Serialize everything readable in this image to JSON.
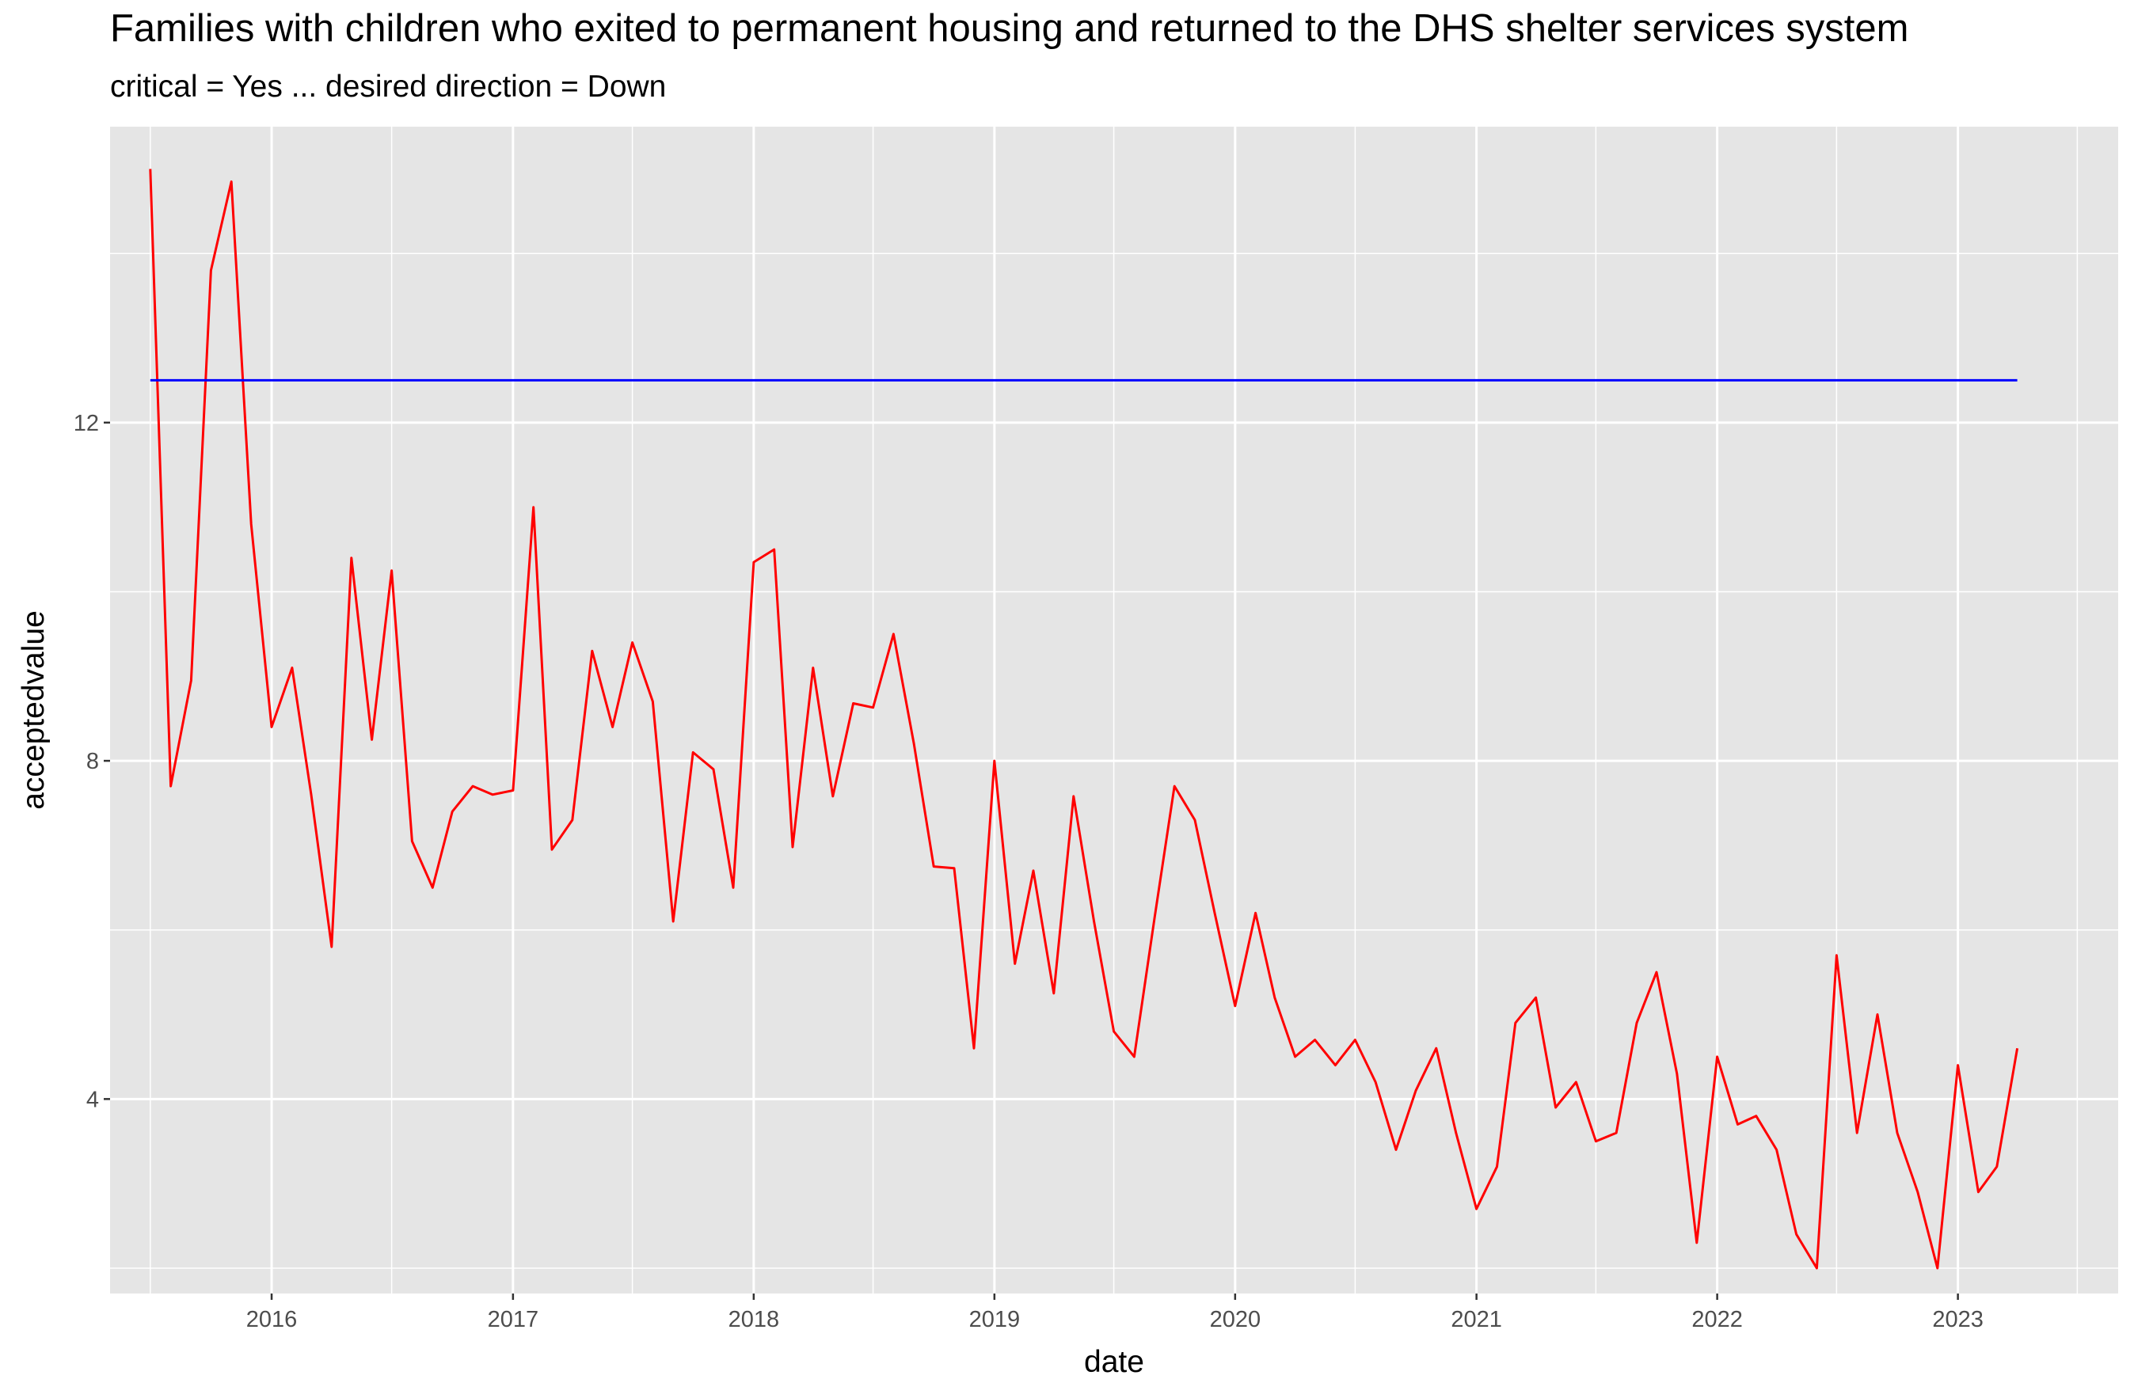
{
  "chart_data": {
    "type": "line",
    "title": "Families with children who exited to permanent housing and returned to the DHS shelter services system",
    "subtitle": "critical = Yes ... desired direction = Down",
    "xlabel": "date",
    "ylabel": "acceptedvalue",
    "xlim": [
      "2015-05-01",
      "2023-09-01"
    ],
    "ylim": [
      1.7,
      15.5
    ],
    "x_tick_labels": [
      "2016",
      "2017",
      "2018",
      "2019",
      "2020",
      "2021",
      "2022",
      "2023"
    ],
    "y_tick_labels": [
      4,
      8,
      12
    ],
    "grid": true,
    "colors": {
      "panel": "#E5E5E5",
      "grid": "#FFFFFF",
      "actual": "#FF0000",
      "target": "#0000FF"
    },
    "series": [
      {
        "color": "#FF0000",
        "x": [
          "2015-07-01",
          "2015-08-01",
          "2015-09-01",
          "2015-10-01",
          "2015-11-01",
          "2015-12-01",
          "2016-01-01",
          "2016-02-01",
          "2016-03-01",
          "2016-04-01",
          "2016-05-01",
          "2016-06-01",
          "2016-07-01",
          "2016-08-01",
          "2016-09-01",
          "2016-10-01",
          "2016-11-01",
          "2016-12-01",
          "2017-01-01",
          "2017-02-01",
          "2017-03-01",
          "2017-04-01",
          "2017-05-01",
          "2017-06-01",
          "2017-07-01",
          "2017-08-01",
          "2017-09-01",
          "2017-10-01",
          "2017-11-01",
          "2017-12-01",
          "2018-01-01",
          "2018-02-01",
          "2018-03-01",
          "2018-04-01",
          "2018-05-01",
          "2018-06-01",
          "2018-07-01",
          "2018-08-01",
          "2018-09-01",
          "2018-10-01",
          "2018-11-01",
          "2018-12-01",
          "2019-01-01",
          "2019-02-01",
          "2019-03-01",
          "2019-04-01",
          "2019-05-01",
          "2019-06-01",
          "2019-07-01",
          "2019-08-01",
          "2019-09-01",
          "2019-10-01",
          "2019-11-01",
          "2019-12-01",
          "2020-01-01",
          "2020-02-01",
          "2020-03-01",
          "2020-04-01",
          "2020-05-01",
          "2020-06-01",
          "2020-07-01",
          "2020-08-01",
          "2020-09-01",
          "2020-10-01",
          "2020-11-01",
          "2020-12-01",
          "2021-01-01",
          "2021-02-01",
          "2021-03-01",
          "2021-04-01",
          "2021-05-01",
          "2021-06-01",
          "2021-07-01",
          "2021-08-01",
          "2021-09-01",
          "2021-10-01",
          "2021-11-01",
          "2021-12-01",
          "2022-01-01",
          "2022-02-01",
          "2022-03-01",
          "2022-04-01",
          "2022-05-01",
          "2022-06-01",
          "2022-07-01",
          "2022-08-01",
          "2022-09-01",
          "2022-10-01",
          "2022-11-01",
          "2022-12-01",
          "2023-01-01",
          "2023-02-01",
          "2023-03-01",
          "2023-04-01"
        ],
        "values": [
          15.0,
          7.7,
          8.95,
          13.8,
          14.85,
          10.8,
          8.4,
          9.1,
          7.6,
          5.8,
          10.4,
          8.25,
          10.25,
          7.05,
          6.5,
          7.4,
          7.7,
          7.6,
          7.65,
          11.0,
          6.95,
          7.3,
          9.3,
          8.4,
          9.4,
          8.7,
          6.1,
          8.1,
          7.9,
          6.5,
          10.35,
          10.5,
          6.98,
          9.1,
          7.58,
          8.68,
          8.63,
          9.5,
          8.2,
          6.75,
          6.73,
          4.6,
          8.0,
          5.6,
          6.7,
          5.25,
          7.58,
          6.1,
          4.8,
          4.5,
          6.15,
          7.7,
          7.3,
          6.2,
          5.1,
          6.2,
          5.2,
          4.5,
          4.7,
          4.4,
          4.7,
          4.2,
          3.4,
          4.1,
          4.6,
          3.6,
          2.7,
          3.2,
          4.9,
          5.2,
          3.9,
          4.2,
          3.5,
          3.6,
          4.9,
          5.5,
          4.3,
          2.3,
          4.5,
          3.7,
          3.8,
          3.4,
          2.4,
          2.0,
          5.7,
          3.6,
          5.0,
          3.6,
          2.9,
          2.0,
          4.4,
          2.9,
          3.2,
          4.6
        ]
      },
      {
        "color": "#0000FF",
        "x": [
          "2015-07-01",
          "2023-04-01"
        ],
        "values": [
          12.5,
          12.5
        ]
      }
    ]
  }
}
